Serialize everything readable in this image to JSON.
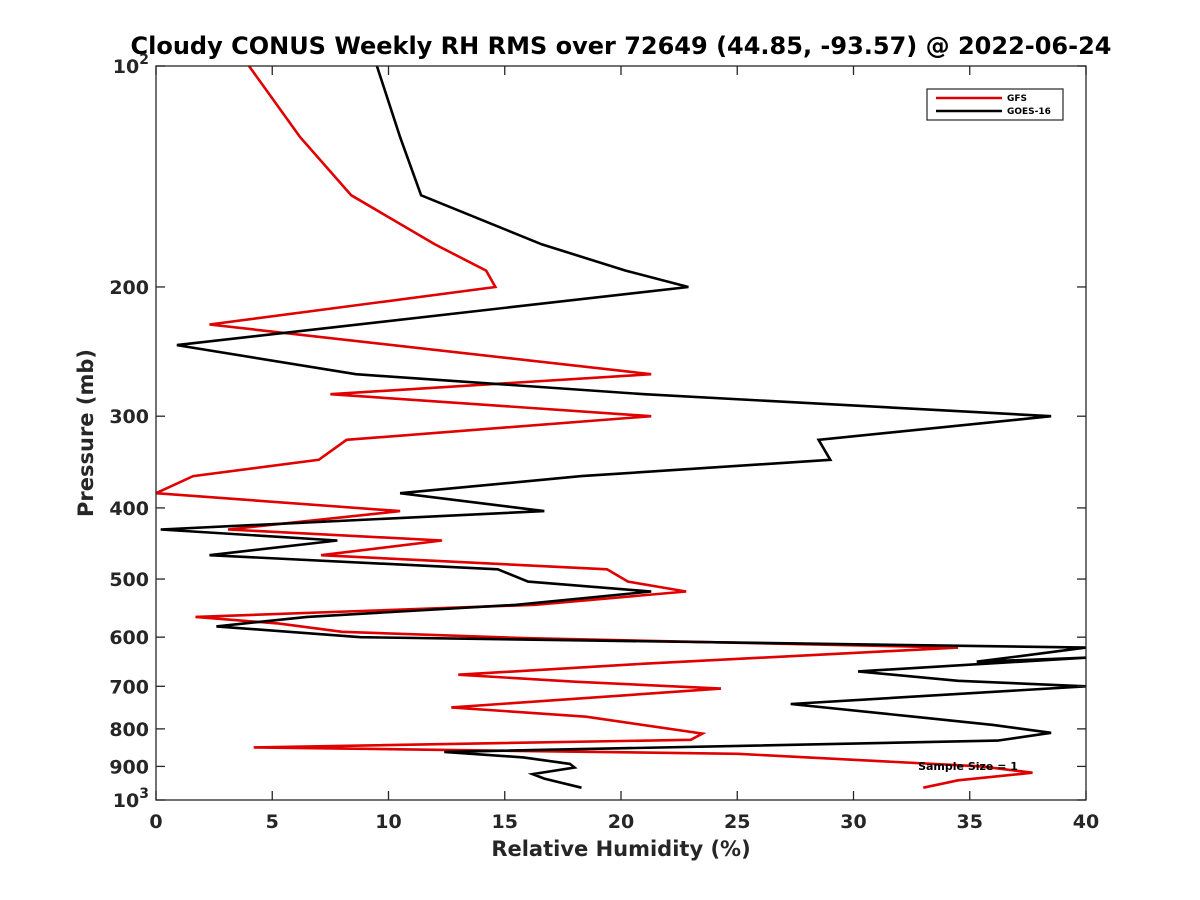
{
  "chart_data": {
    "type": "line",
    "title": "Cloudy CONUS Weekly RH RMS over 72649 (44.85, -93.57) @ 2022-06-24",
    "xlabel": "Relative Humidity (%)",
    "ylabel": "Pressure (mb)",
    "xlim": [
      0,
      40
    ],
    "ylim": [
      100,
      1000
    ],
    "yscale": "log",
    "y_reversed": true,
    "grid": false,
    "legend_position": "top-right",
    "x_ticks": [
      0,
      5,
      10,
      15,
      20,
      25,
      30,
      35,
      40
    ],
    "y_ticks": [
      {
        "value": 100,
        "base": "10",
        "exp": "2"
      },
      {
        "value": 200,
        "label": "200"
      },
      {
        "value": 300,
        "label": "300"
      },
      {
        "value": 400,
        "label": "400"
      },
      {
        "value": 500,
        "label": "500"
      },
      {
        "value": 600,
        "label": "600"
      },
      {
        "value": 700,
        "label": "700"
      },
      {
        "value": 800,
        "label": "800"
      },
      {
        "value": 900,
        "label": "900"
      },
      {
        "value": 1000,
        "base": "10",
        "exp": "3"
      }
    ],
    "annotation": "Sample Size = 1",
    "series": [
      {
        "name": "GFS",
        "color": "#e00000",
        "points": [
          [
            4.0,
            100
          ],
          [
            6.2,
            125
          ],
          [
            8.4,
            150
          ],
          [
            12.0,
            175
          ],
          [
            14.2,
            190
          ],
          [
            14.6,
            200
          ],
          [
            2.3,
            225
          ],
          [
            21.3,
            263
          ],
          [
            7.5,
            280
          ],
          [
            21.3,
            300
          ],
          [
            8.2,
            323
          ],
          [
            7.0,
            344
          ],
          [
            1.6,
            362
          ],
          [
            0.0,
            382
          ],
          [
            10.5,
            404
          ],
          [
            3.1,
            428
          ],
          [
            12.3,
            443
          ],
          [
            7.1,
            464
          ],
          [
            19.4,
            485
          ],
          [
            20.3,
            504
          ],
          [
            22.8,
            520
          ],
          [
            16.3,
            542
          ],
          [
            1.7,
            563
          ],
          [
            5.3,
            575
          ],
          [
            8.0,
            590
          ],
          [
            16.0,
            602
          ],
          [
            34.5,
            620
          ],
          [
            21.0,
            652
          ],
          [
            13.0,
            675
          ],
          [
            18.0,
            690
          ],
          [
            24.3,
            705
          ],
          [
            12.7,
            748
          ],
          [
            18.5,
            770
          ],
          [
            23.5,
            812
          ],
          [
            23.0,
            828
          ],
          [
            4.2,
            848
          ],
          [
            25.0,
            865
          ],
          [
            35.5,
            900
          ],
          [
            37.7,
            918
          ],
          [
            34.5,
            940
          ],
          [
            33.0,
            962
          ]
        ]
      },
      {
        "name": "GOES-16",
        "color": "#000000",
        "points": [
          [
            9.5,
            100
          ],
          [
            10.5,
            125
          ],
          [
            11.4,
            150
          ],
          [
            16.6,
            175
          ],
          [
            20.2,
            190
          ],
          [
            22.9,
            200
          ],
          [
            0.9,
            240
          ],
          [
            8.6,
            263
          ],
          [
            21.0,
            280
          ],
          [
            38.5,
            300
          ],
          [
            28.5,
            323
          ],
          [
            29.0,
            344
          ],
          [
            18.3,
            362
          ],
          [
            10.5,
            382
          ],
          [
            16.7,
            404
          ],
          [
            0.2,
            428
          ],
          [
            7.8,
            443
          ],
          [
            2.3,
            464
          ],
          [
            14.7,
            485
          ],
          [
            16.0,
            504
          ],
          [
            21.3,
            520
          ],
          [
            15.5,
            542
          ],
          [
            6.5,
            563
          ],
          [
            2.6,
            580
          ],
          [
            8.8,
            600
          ],
          [
            40.0,
            620
          ],
          [
            35.3,
            648
          ],
          [
            40.0,
            640
          ],
          [
            30.2,
            668
          ],
          [
            34.5,
            688
          ],
          [
            40.0,
            700
          ],
          [
            27.3,
            740
          ],
          [
            32.6,
            770
          ],
          [
            36.0,
            790
          ],
          [
            38.5,
            810
          ],
          [
            36.2,
            830
          ],
          [
            12.4,
            860
          ],
          [
            15.8,
            875
          ],
          [
            17.8,
            893
          ],
          [
            18.0,
            903
          ],
          [
            16.2,
            922
          ],
          [
            16.7,
            935
          ],
          [
            18.3,
            962
          ]
        ]
      }
    ]
  }
}
